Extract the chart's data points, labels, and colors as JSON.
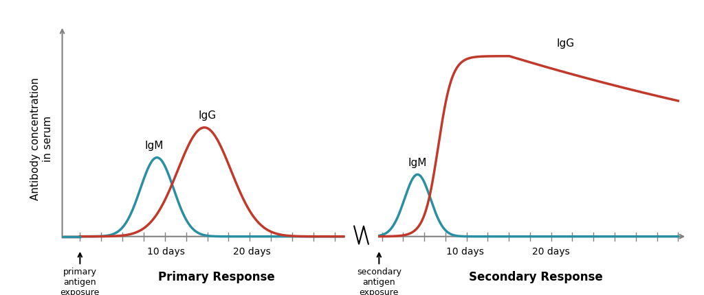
{
  "ylabel": "Antibody concentration\nin serum",
  "igm_color": "#2a8fa3",
  "igg_color": "#c0392b",
  "axis_color": "#808080",
  "background_color": "#ffffff",
  "primary_label": "Primary Response",
  "secondary_label": "Secondary Response",
  "primary_exposure_label": "primary\nantigen\nexposure",
  "secondary_exposure_label": "secondary\nantigen\nexposure",
  "igm_label": "IgM",
  "igg_label": "IgG",
  "figsize": [
    10.24,
    4.3
  ],
  "dpi": 100
}
